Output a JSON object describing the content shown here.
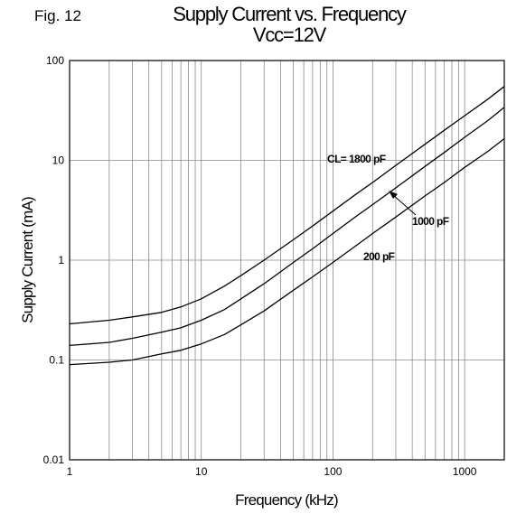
{
  "figure_label": "Fig. 12",
  "chart_data": {
    "type": "line",
    "title": "Supply Current vs. Frequency",
    "subtitle": "Vcc=12V",
    "xlabel": "Frequency (kHz)",
    "ylabel": "Supply Current (mA)",
    "xscale": "log",
    "yscale": "log",
    "xlim": [
      1,
      2000
    ],
    "ylim": [
      0.01,
      100
    ],
    "xticks": [
      "1",
      "10",
      "100",
      "1000"
    ],
    "yticks": [
      "100",
      "10",
      "1",
      "0.1",
      "0.01"
    ],
    "grid": true,
    "series": [
      {
        "name": "CL= 1800 pF",
        "x": [
          1,
          2,
          3,
          5,
          7,
          10,
          15,
          20,
          30,
          50,
          70,
          100,
          150,
          200,
          300,
          500,
          700,
          1000,
          1500,
          2000
        ],
        "y": [
          0.23,
          0.25,
          0.27,
          0.3,
          0.34,
          0.41,
          0.55,
          0.7,
          1.0,
          1.6,
          2.2,
          3.1,
          4.6,
          6.0,
          8.9,
          14.5,
          20.0,
          28.0,
          41.0,
          55.0
        ]
      },
      {
        "name": "1000 pF",
        "x": [
          1,
          2,
          3,
          5,
          7,
          10,
          15,
          20,
          30,
          50,
          70,
          100,
          150,
          200,
          300,
          500,
          700,
          1000,
          1500,
          2000
        ],
        "y": [
          0.14,
          0.15,
          0.165,
          0.19,
          0.21,
          0.25,
          0.32,
          0.41,
          0.58,
          0.95,
          1.3,
          1.85,
          2.75,
          3.6,
          5.3,
          8.7,
          12.0,
          17.0,
          25.0,
          34.0
        ]
      },
      {
        "name": "200 pF",
        "x": [
          1,
          2,
          3,
          5,
          7,
          10,
          15,
          20,
          30,
          50,
          70,
          100,
          150,
          200,
          300,
          500,
          700,
          1000,
          1500,
          2000
        ],
        "y": [
          0.09,
          0.095,
          0.1,
          0.115,
          0.125,
          0.145,
          0.18,
          0.225,
          0.31,
          0.5,
          0.68,
          0.95,
          1.4,
          1.85,
          2.7,
          4.4,
          6.0,
          8.5,
          12.3,
          16.5
        ]
      }
    ],
    "annotations": [
      {
        "text": "CL= 1800 pF",
        "series": 0
      },
      {
        "text": "1000 pF",
        "series": 1
      },
      {
        "text": "200 pF",
        "series": 2
      }
    ]
  }
}
